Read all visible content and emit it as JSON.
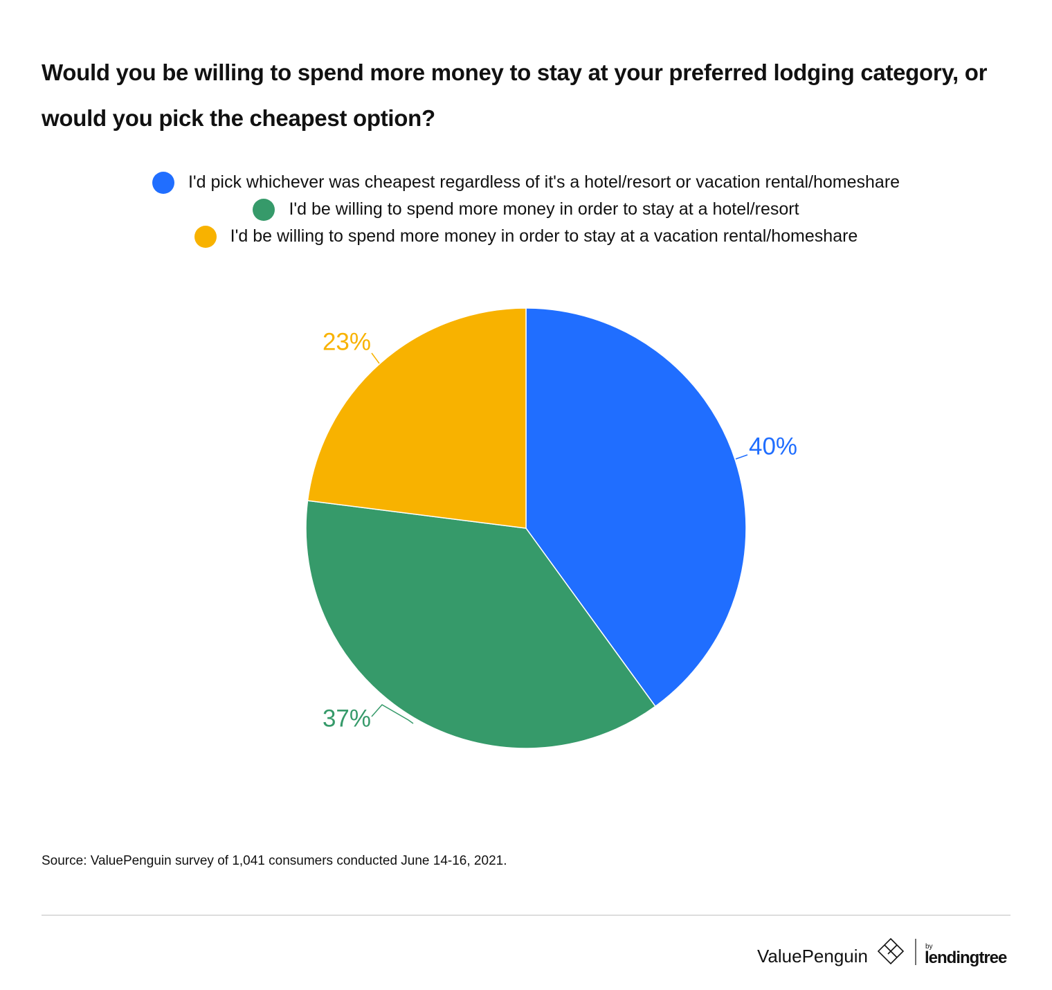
{
  "chart_data": {
    "type": "pie",
    "title": "Would you be willing to spend more money to stay at your preferred lodging category, or would you pick the cheapest option?",
    "categories": [
      "I'd pick whichever was cheapest regardless of it's a hotel/resort or vacation rental/homeshare",
      "I'd be willing to spend more money in order to stay at a hotel/resort",
      "I'd be willing to spend more money in order to stay at a vacation rental/homeshare"
    ],
    "values": [
      40,
      37,
      23
    ],
    "value_labels": [
      "40%",
      "37%",
      "23%"
    ],
    "colors": [
      "#206eff",
      "#369a6a",
      "#f8b200"
    ],
    "source": "Source: ValuePenguin survey of 1,041 consumers conducted June 14-16, 2021."
  },
  "footer": {
    "brand": "ValuePenguin",
    "by": "by",
    "partner": "lendingtree"
  }
}
